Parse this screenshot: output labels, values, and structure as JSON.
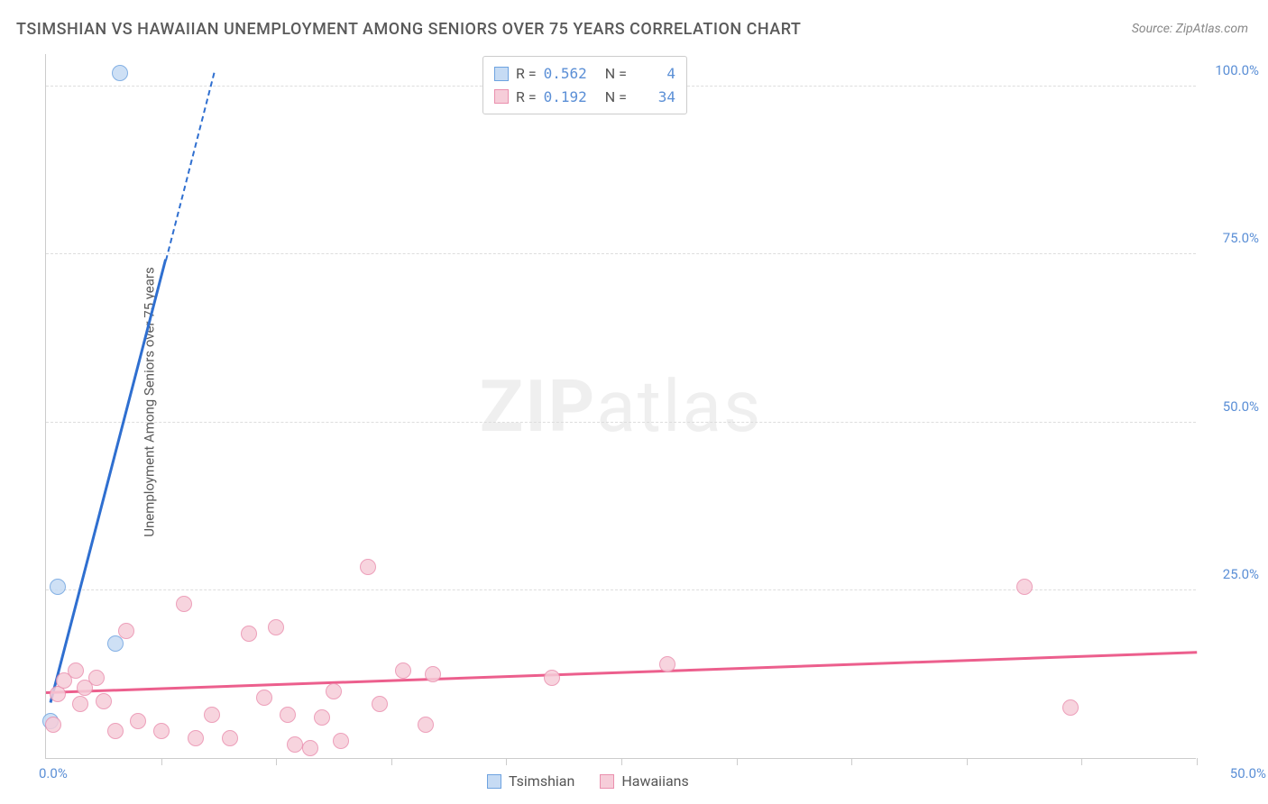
{
  "title": "TSIMSHIAN VS HAWAIIAN UNEMPLOYMENT AMONG SENIORS OVER 75 YEARS CORRELATION CHART",
  "source": "Source: ZipAtlas.com",
  "y_axis_label": "Unemployment Among Seniors over 75 years",
  "watermark_bold": "ZIP",
  "watermark_rest": "atlas",
  "chart": {
    "type": "scatter",
    "xlim": [
      0,
      50
    ],
    "ylim": [
      0,
      105
    ],
    "x_tick_label_left": "0.0%",
    "x_tick_label_right": "50.0%",
    "y_ticks": [
      {
        "v": 25,
        "label": "25.0%"
      },
      {
        "v": 50,
        "label": "50.0%"
      },
      {
        "v": 75,
        "label": "75.0%"
      },
      {
        "v": 100,
        "label": "100.0%"
      }
    ],
    "x_minor_ticks": [
      5,
      10,
      15,
      20,
      25,
      30,
      35,
      40,
      45,
      50
    ],
    "grid_color": "#dddddd",
    "axis_color": "#cccccc",
    "background_color": "#ffffff",
    "marker_radius": 9,
    "series": [
      {
        "name": "Tsimshian",
        "fill": "#c6dbf4",
        "stroke": "#6ea3e0",
        "trend_color": "#2f6fd0",
        "r": "0.562",
        "n": "4",
        "points": [
          {
            "x": 0.2,
            "y": 5.5
          },
          {
            "x": 0.5,
            "y": 25.5
          },
          {
            "x": 3.0,
            "y": 17.0
          },
          {
            "x": 3.2,
            "y": 102.0
          }
        ],
        "trend": {
          "x1": 0.2,
          "y1": 8,
          "x2": 5.2,
          "y2": 74,
          "dash_to_x": 7.3,
          "dash_to_y": 102
        }
      },
      {
        "name": "Hawaiians",
        "fill": "#f6cdd9",
        "stroke": "#ea8fae",
        "trend_color": "#ec5f8d",
        "r": "0.192",
        "n": "34",
        "points": [
          {
            "x": 0.3,
            "y": 5.0
          },
          {
            "x": 0.5,
            "y": 9.5
          },
          {
            "x": 0.8,
            "y": 11.5
          },
          {
            "x": 1.3,
            "y": 13.0
          },
          {
            "x": 1.5,
            "y": 8.0
          },
          {
            "x": 1.7,
            "y": 10.5
          },
          {
            "x": 2.2,
            "y": 12.0
          },
          {
            "x": 2.5,
            "y": 8.5
          },
          {
            "x": 3.0,
            "y": 4.0
          },
          {
            "x": 3.5,
            "y": 19.0
          },
          {
            "x": 4.0,
            "y": 5.5
          },
          {
            "x": 5.0,
            "y": 4.0
          },
          {
            "x": 6.0,
            "y": 23.0
          },
          {
            "x": 6.5,
            "y": 3.0
          },
          {
            "x": 7.2,
            "y": 6.5
          },
          {
            "x": 8.0,
            "y": 3.0
          },
          {
            "x": 8.8,
            "y": 18.5
          },
          {
            "x": 9.5,
            "y": 9.0
          },
          {
            "x": 10.0,
            "y": 19.5
          },
          {
            "x": 10.5,
            "y": 6.5
          },
          {
            "x": 10.8,
            "y": 2.0
          },
          {
            "x": 11.5,
            "y": 1.5
          },
          {
            "x": 12.0,
            "y": 6.0
          },
          {
            "x": 12.5,
            "y": 10.0
          },
          {
            "x": 12.8,
            "y": 2.5
          },
          {
            "x": 14.0,
            "y": 28.5
          },
          {
            "x": 14.5,
            "y": 8.0
          },
          {
            "x": 15.5,
            "y": 13.0
          },
          {
            "x": 16.5,
            "y": 5.0
          },
          {
            "x": 16.8,
            "y": 12.5
          },
          {
            "x": 22.0,
            "y": 12.0
          },
          {
            "x": 27.0,
            "y": 14.0
          },
          {
            "x": 42.5,
            "y": 25.5
          },
          {
            "x": 44.5,
            "y": 7.5
          }
        ],
        "trend": {
          "x1": 0,
          "y1": 9.5,
          "x2": 50,
          "y2": 15.5
        }
      }
    ]
  },
  "legend_top_labels": {
    "r": "R =",
    "n": "N ="
  },
  "legend_bottom": [
    {
      "label": "Tsimshian",
      "fill": "#c6dbf4",
      "stroke": "#6ea3e0"
    },
    {
      "label": "Hawaiians",
      "fill": "#f6cdd9",
      "stroke": "#ea8fae"
    }
  ]
}
